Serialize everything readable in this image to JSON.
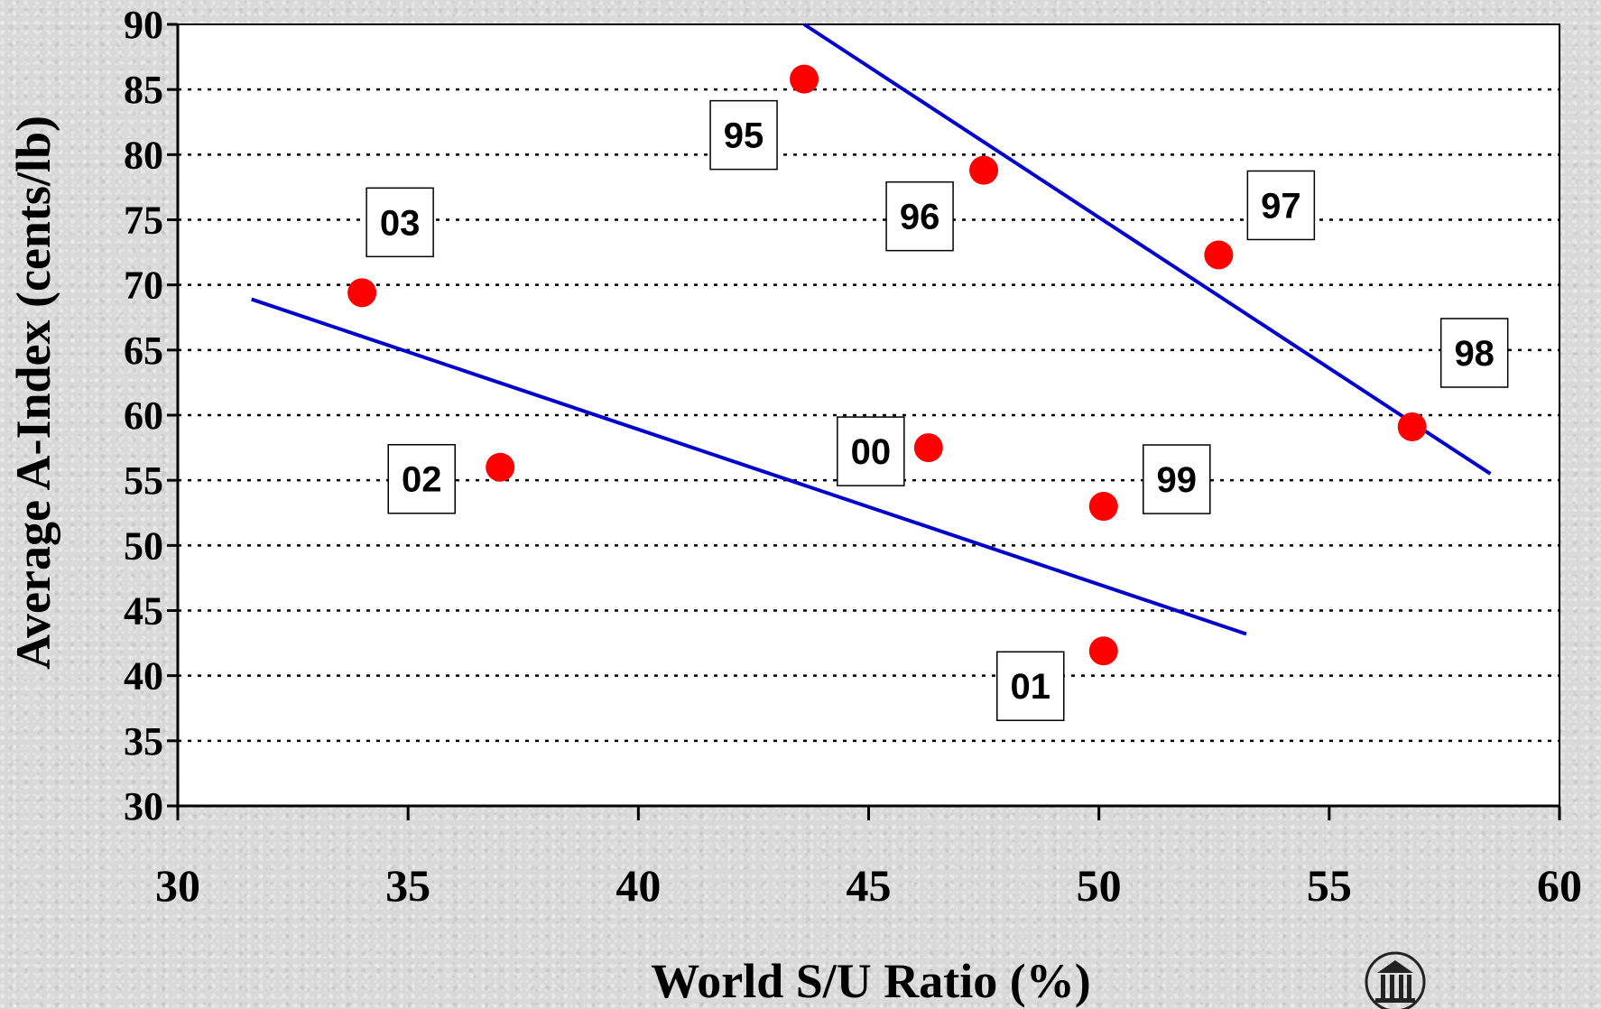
{
  "chart_data": {
    "type": "scatter",
    "title": "",
    "xlabel": "World S/U Ratio (%)",
    "ylabel": "Average A-Index (cents/lb)",
    "xlim": [
      30,
      60
    ],
    "ylim": [
      30,
      90
    ],
    "x_ticks": [
      "30",
      "35",
      "40",
      "45",
      "50",
      "55",
      "60"
    ],
    "y_ticks": [
      "30",
      "35",
      "40",
      "45",
      "50",
      "55",
      "60",
      "65",
      "70",
      "75",
      "80",
      "85",
      "90"
    ],
    "grid": "horizontal-dotted",
    "legend": "none",
    "points": [
      {
        "label": "95",
        "x": 43.6,
        "y": 85.8
      },
      {
        "label": "96",
        "x": 47.5,
        "y": 78.8
      },
      {
        "label": "97",
        "x": 52.6,
        "y": 72.3
      },
      {
        "label": "98",
        "x": 56.8,
        "y": 59.1
      },
      {
        "label": "99",
        "x": 50.1,
        "y": 53.0
      },
      {
        "label": "00",
        "x": 46.3,
        "y": 57.5
      },
      {
        "label": "01",
        "x": 50.1,
        "y": 41.9
      },
      {
        "label": "02",
        "x": 37.0,
        "y": 56.0
      },
      {
        "label": "03",
        "x": 34.0,
        "y": 69.4
      }
    ],
    "trend_lines": [
      {
        "x": [
          43.6,
          58.5
        ],
        "y": [
          90.0,
          55.5
        ]
      },
      {
        "x": [
          31.6,
          53.2
        ],
        "y": [
          68.9,
          43.2
        ]
      }
    ],
    "colors": {
      "point": "#ff0000",
      "trend_line": "#0000cc",
      "plot_background": "#ffffff",
      "grid": "#000000"
    }
  },
  "logo": {
    "icon": "university-building-icon"
  }
}
